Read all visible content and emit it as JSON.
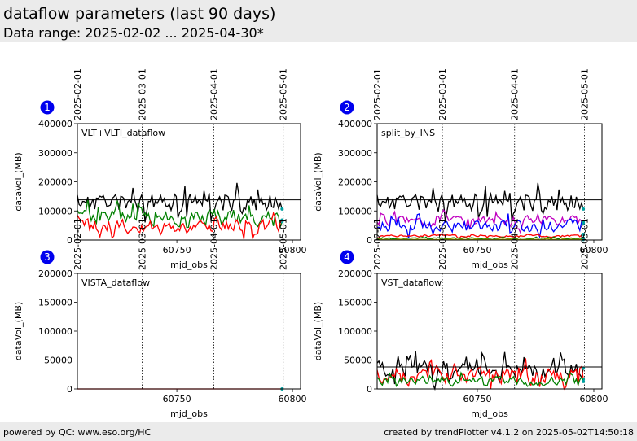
{
  "header": {
    "title": "dataflow parameters (last 90 days)",
    "subtitle": "Data range: 2025-02-02 ... 2025-04-30*"
  },
  "footer": {
    "left": "powered by QC: www.eso.org/HC",
    "right": "created by trendPlotter v4.1.2 on 2025-05-02T14:50:18"
  },
  "colors": {
    "badge": "#0000ee",
    "black": "#000000",
    "green": "#008000",
    "red": "#ff0000",
    "blue": "#0000ff",
    "magenta": "#c000c0",
    "olive": "#a0a000",
    "teal": "#00a0a0",
    "header_bg": "#ebebeb"
  },
  "chart_data": [
    {
      "type": "line",
      "panel_number": "1",
      "title": "VLT+VLTI_dataflow",
      "xlabel": "mjd_obs",
      "ylabel": "dataVol_(MB)",
      "xlim": [
        60707.0,
        60803.5
      ],
      "ylim": [
        0,
        400000
      ],
      "xticks": [
        60750,
        60800
      ],
      "yticks": [
        0,
        100000,
        200000,
        300000,
        400000
      ],
      "date_markers": [
        {
          "x": 60707,
          "label": "2025-02-01"
        },
        {
          "x": 60735,
          "label": "2025-03-01"
        },
        {
          "x": 60766,
          "label": "2025-04-01"
        },
        {
          "x": 60796,
          "label": "2025-05-01"
        }
      ],
      "reference_line": 138000,
      "series": [
        {
          "color": "#000000",
          "start": 60707,
          "end": 60796,
          "base": 130000,
          "amp": 38000,
          "seed": 11
        },
        {
          "color": "#008000",
          "start": 60707,
          "end": 60796,
          "base": 80000,
          "amp": 32000,
          "seed": 23
        },
        {
          "color": "#ff0000",
          "start": 60707,
          "end": 60796,
          "base": 48000,
          "amp": 26000,
          "seed": 37
        }
      ]
    },
    {
      "type": "line",
      "panel_number": "2",
      "title": "split_by_INS",
      "xlabel": "mjd_obs",
      "ylabel": "dataVol_(MB)",
      "xlim": [
        60707.0,
        60803.5
      ],
      "ylim": [
        0,
        400000
      ],
      "xticks": [
        60750,
        60800
      ],
      "yticks": [
        0,
        100000,
        200000,
        300000,
        400000
      ],
      "date_markers": [
        {
          "x": 60707,
          "label": "2025-02-01"
        },
        {
          "x": 60735,
          "label": "2025-03-01"
        },
        {
          "x": 60766,
          "label": "2025-04-01"
        },
        {
          "x": 60796,
          "label": "2025-05-01"
        }
      ],
      "reference_line": 138000,
      "series": [
        {
          "color": "#000000",
          "start": 60707,
          "end": 60796,
          "base": 130000,
          "amp": 38000,
          "seed": 11
        },
        {
          "color": "#c000c0",
          "start": 60707,
          "end": 60796,
          "base": 66000,
          "amp": 18000,
          "seed": 51
        },
        {
          "color": "#0000ff",
          "start": 60707,
          "end": 60796,
          "base": 48000,
          "amp": 22000,
          "seed": 63
        },
        {
          "color": "#ff0000",
          "start": 60707,
          "end": 60796,
          "base": 14000,
          "amp": 4000,
          "seed": 71
        },
        {
          "color": "#008000",
          "start": 60707,
          "end": 60796,
          "base": 6000,
          "amp": 2500,
          "seed": 83
        },
        {
          "color": "#a0a000",
          "start": 60707,
          "end": 60796,
          "base": 2000,
          "amp": 1200,
          "seed": 97
        }
      ]
    },
    {
      "type": "line",
      "panel_number": "3",
      "title": "VISTA_dataflow",
      "xlabel": "mjd_obs",
      "ylabel": "dataVol_(MB)",
      "xlim": [
        60707.0,
        60803.5
      ],
      "ylim": [
        0,
        200000
      ],
      "xticks": [
        60750,
        60800
      ],
      "yticks": [
        0,
        50000,
        100000,
        150000,
        200000
      ],
      "date_markers": [
        {
          "x": 60707,
          "label": "2025-02-01"
        },
        {
          "x": 60735,
          "label": "2025-03-01"
        },
        {
          "x": 60766,
          "label": "2025-04-01"
        },
        {
          "x": 60796,
          "label": "2025-05-01"
        }
      ],
      "reference_line": null,
      "series": [
        {
          "color": "#ff0000",
          "start": 60707,
          "end": 60796,
          "base": 0,
          "amp": 0,
          "seed": 5
        }
      ]
    },
    {
      "type": "line",
      "panel_number": "4",
      "title": "VST_dataflow",
      "xlabel": "mjd_obs",
      "ylabel": "dataVol_(MB)",
      "xlim": [
        60707.0,
        60803.5
      ],
      "ylim": [
        0,
        200000
      ],
      "xticks": [
        60750,
        60800
      ],
      "yticks": [
        0,
        50000,
        100000,
        150000,
        200000
      ],
      "date_markers": [
        {
          "x": 60707,
          "label": "2025-02-01"
        },
        {
          "x": 60735,
          "label": "2025-03-01"
        },
        {
          "x": 60766,
          "label": "2025-04-01"
        },
        {
          "x": 60796,
          "label": "2025-05-01"
        }
      ],
      "reference_line": 38000,
      "series": [
        {
          "color": "#000000",
          "start": 60707,
          "end": 60796,
          "base": 34000,
          "amp": 16000,
          "seed": 17
        },
        {
          "color": "#ff0000",
          "start": 60707,
          "end": 60796,
          "base": 22000,
          "amp": 15000,
          "seed": 29
        },
        {
          "color": "#008000",
          "start": 60707,
          "end": 60796,
          "base": 13000,
          "amp": 9000,
          "seed": 41
        }
      ]
    }
  ]
}
